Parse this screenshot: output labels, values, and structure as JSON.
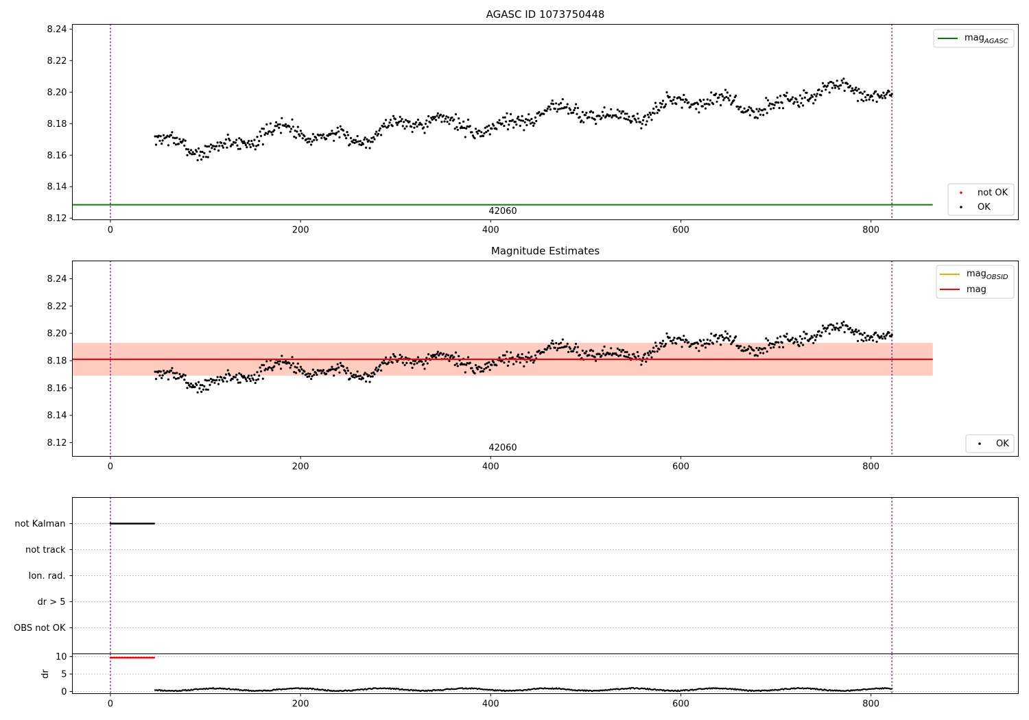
{
  "figure": {
    "colors": {
      "ok": "#000000",
      "not_ok": "#ff0000",
      "mag_agasc": "#008000",
      "mag_obsid": "#ffa500",
      "mag": "#ff0000",
      "band_outer": "#ffc0cb",
      "band_inner": "#ffa07a",
      "obs_boundary": "#800080",
      "grid": "#b0b0b0"
    }
  },
  "chart_data": [
    {
      "type": "scatter",
      "id": "agasc",
      "title": "AGASC ID 1073750448",
      "xlim": [
        -40,
        955
      ],
      "ylim": [
        8.119,
        8.243
      ],
      "xticks": [
        0,
        200,
        400,
        600,
        800
      ],
      "xtick_labels": [
        "0",
        "200",
        "400",
        "600",
        "800"
      ],
      "yticks": [
        8.12,
        8.14,
        8.16,
        8.18,
        8.2,
        8.22,
        8.24
      ],
      "ytick_labels": [
        "8.12",
        "8.14",
        "8.16",
        "8.18",
        "8.20",
        "8.22",
        "8.24"
      ],
      "vlines": [
        0,
        822
      ],
      "hlines": [
        {
          "name": "mag_agasc",
          "y": 8.1285,
          "x0": -40,
          "x1": 865
        }
      ],
      "annotation": {
        "text": "42060",
        "x": 411,
        "y": 8.124
      },
      "series": [
        {
          "name": "not OK",
          "color": "#ff0000",
          "n": 0
        },
        {
          "name": "OK",
          "color": "#000000",
          "x_range": [
            47,
            822
          ],
          "n": 780
        }
      ],
      "legend_lines": [
        {
          "base": "mag",
          "sub": "AGASC",
          "color": "#008000"
        }
      ],
      "legend_points": [
        {
          "label": "not OK",
          "color": "#ff0000"
        },
        {
          "label": "OK",
          "color": "#000000"
        }
      ]
    },
    {
      "type": "scatter",
      "id": "estimates",
      "title": "Magnitude Estimates",
      "xlim": [
        -40,
        955
      ],
      "ylim": [
        8.11,
        8.253
      ],
      "xticks": [
        0,
        200,
        400,
        600,
        800
      ],
      "xtick_labels": [
        "0",
        "200",
        "400",
        "600",
        "800"
      ],
      "yticks": [
        8.12,
        8.14,
        8.16,
        8.18,
        8.2,
        8.22,
        8.24
      ],
      "ytick_labels": [
        "8.12",
        "8.14",
        "8.16",
        "8.18",
        "8.20",
        "8.22",
        "8.24"
      ],
      "vlines": [
        0,
        822
      ],
      "bands": [
        {
          "y0": 8.169,
          "y1": 8.193,
          "x0": -40,
          "x1": 865,
          "color": "#ffc0cb",
          "alpha": 0.45
        },
        {
          "y0": 8.169,
          "y1": 8.193,
          "x0": -40,
          "x1": 865,
          "color": "#ffa07a",
          "alpha": 0.35
        }
      ],
      "hlines": [
        {
          "name": "mag_obsid",
          "y": 8.181,
          "x0": -40,
          "x1": 865,
          "color": "#ffa500"
        },
        {
          "name": "mag",
          "y": 8.181,
          "x0": -40,
          "x1": 865,
          "color": "#ff0000"
        }
      ],
      "annotation": {
        "text": "42060",
        "x": 411,
        "y": 8.113
      },
      "series": [
        {
          "name": "OK",
          "color": "#000000",
          "x_range": [
            47,
            822
          ],
          "n": 780
        }
      ],
      "legend_lines": [
        {
          "base": "mag",
          "sub": "OBSID",
          "color": "#ffa500"
        },
        {
          "base": "mag",
          "sub": "",
          "color": "#ff0000"
        }
      ],
      "legend_points": [
        {
          "label": "OK",
          "color": "#000000"
        }
      ]
    },
    {
      "type": "scatter",
      "id": "flags",
      "xlim": [
        -40,
        955
      ],
      "categories": [
        "not Kalman",
        "not track",
        "Ion. rad.",
        "dr > 5",
        "OBS not OK"
      ],
      "vlines": [
        0,
        822
      ],
      "series": [
        {
          "name": "not Kalman",
          "color": "#000000",
          "x_range": [
            0,
            46
          ],
          "step": 1
        }
      ]
    },
    {
      "type": "scatter",
      "id": "dr",
      "ylabel": "dr",
      "xlim": [
        -40,
        955
      ],
      "ylim": [
        -0.6,
        10.8
      ],
      "yticks": [
        0,
        5,
        10
      ],
      "ytick_labels": [
        "0",
        "5",
        "10"
      ],
      "xticks": [
        0,
        200,
        400,
        600,
        800
      ],
      "xtick_labels": [
        "0",
        "200",
        "400",
        "600",
        "800"
      ],
      "vlines": [
        0,
        822
      ],
      "series": [
        {
          "name": "dr clipped",
          "color": "#ff0000",
          "x_range": [
            0,
            46
          ],
          "y": 9.7
        },
        {
          "name": "dr",
          "color": "#000000",
          "x_range": [
            47,
            822
          ],
          "y_range": [
            0,
            1.3
          ]
        }
      ]
    }
  ]
}
